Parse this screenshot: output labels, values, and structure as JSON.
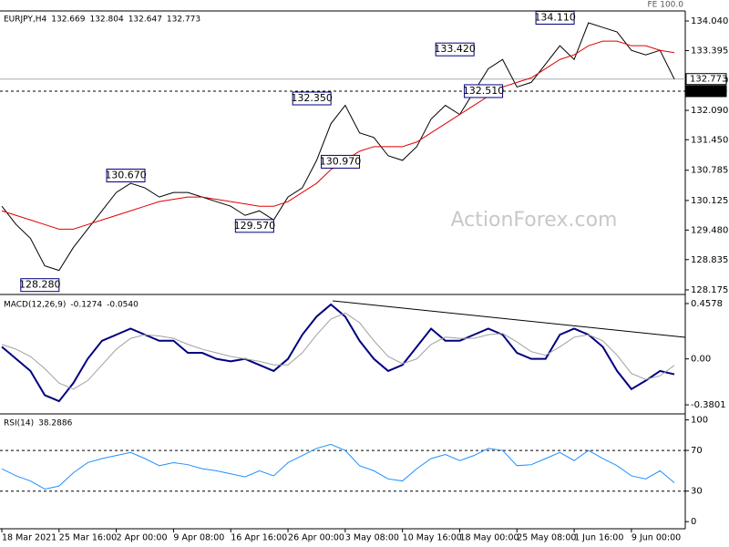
{
  "chart_data": [
    {
      "type": "line",
      "title": "EURJPY,H4",
      "ohlc": [
        132.669,
        132.804,
        132.647,
        132.773
      ],
      "indicator": "FE 100.0",
      "watermark": "ActionForex.com",
      "ylim": [
        128.095,
        134.259
      ],
      "yticks": [
        {
          "value": 134.04,
          "label": "134.040"
        },
        133.395,
        {
          "value": 132.75,
          "label": "132.750"
        },
        {
          "value": 132.09,
          "label": "132.090"
        },
        {
          "value": 131.45,
          "label": "131.450"
        },
        130.785,
        130.125,
        {
          "value": 129.48,
          "label": "129.480"
        },
        128.835,
        128.175
      ],
      "levels": [
        {
          "value": 132.773,
          "label": "132.773",
          "style": "solid"
        },
        {
          "value": 132.51,
          "label": "132.510",
          "style": "dashed"
        }
      ],
      "series": [
        {
          "name": "Close",
          "color": "#000000",
          "values": [
            130.0,
            129.6,
            129.3,
            128.7,
            128.6,
            129.1,
            129.5,
            129.9,
            130.3,
            130.5,
            130.4,
            130.2,
            130.3,
            130.3,
            130.2,
            130.1,
            130.0,
            129.8,
            129.9,
            129.7,
            130.2,
            130.4,
            131.0,
            131.8,
            132.2,
            131.6,
            131.5,
            131.1,
            131.0,
            131.3,
            131.9,
            132.2,
            132.0,
            132.5,
            133.0,
            133.2,
            132.6,
            132.7,
            133.1,
            133.5,
            133.2,
            134.0,
            133.9,
            133.8,
            133.4,
            133.3,
            133.4,
            132.773
          ]
        },
        {
          "name": "MA",
          "color": "#e00000",
          "values": [
            129.9,
            129.8,
            129.7,
            129.6,
            129.5,
            129.5,
            129.6,
            129.7,
            129.8,
            129.9,
            130.0,
            130.1,
            130.15,
            130.2,
            130.2,
            130.15,
            130.1,
            130.05,
            130.0,
            130.0,
            130.1,
            130.3,
            130.5,
            130.8,
            131.0,
            131.2,
            131.3,
            131.3,
            131.3,
            131.4,
            131.6,
            131.8,
            132.0,
            132.2,
            132.4,
            132.6,
            132.7,
            132.8,
            133.0,
            133.2,
            133.3,
            133.5,
            133.6,
            133.6,
            133.5,
            133.5,
            133.4,
            133.35
          ]
        }
      ],
      "annotations": [
        {
          "x": 4,
          "value": 128.28,
          "label": "128.280"
        },
        {
          "x": 10,
          "value": 130.67,
          "label": "130.670"
        },
        {
          "x": 19,
          "value": 129.57,
          "label": "129.570"
        },
        {
          "x": 23,
          "value": 132.35,
          "label": "132.350"
        },
        {
          "x": 25,
          "value": 130.97,
          "label": "130.970"
        },
        {
          "x": 33,
          "value": 133.42,
          "label": "133.420"
        },
        {
          "x": 35,
          "value": 132.51,
          "label": "132.510"
        },
        {
          "x": 40,
          "value": 134.11,
          "label": "134.110"
        }
      ]
    },
    {
      "type": "line",
      "title": "MACD(12,26,9)",
      "readout": [
        -0.1274,
        {
          "value": -0.054,
          "label": "-0.0540"
        }
      ],
      "ylim": [
        -0.44,
        0.5178
      ],
      "yticks": [
        0.4578,
        {
          "value": 0,
          "label": "0.00"
        },
        -0.3801
      ],
      "series": [
        {
          "name": "MACD",
          "color": "#000080",
          "values": [
            0.1,
            0.0,
            -0.1,
            -0.3,
            -0.35,
            -0.2,
            0.0,
            0.15,
            0.2,
            0.25,
            0.2,
            0.15,
            0.15,
            0.05,
            0.05,
            0.0,
            -0.02,
            0.0,
            -0.05,
            -0.1,
            0.0,
            0.2,
            0.35,
            0.45,
            0.35,
            0.15,
            0.0,
            -0.1,
            -0.05,
            0.1,
            0.25,
            0.15,
            0.15,
            0.2,
            0.25,
            0.2,
            0.05,
            0.0,
            0.0,
            0.2,
            0.25,
            0.2,
            0.1,
            -0.1,
            -0.25,
            -0.18,
            -0.1,
            -0.1274
          ]
        },
        {
          "name": "Signal",
          "color": "#a0a0a0",
          "values": [
            0.12,
            0.08,
            0.02,
            -0.08,
            -0.2,
            -0.25,
            -0.18,
            -0.05,
            0.08,
            0.17,
            0.2,
            0.19,
            0.17,
            0.12,
            0.08,
            0.05,
            0.02,
            0.0,
            -0.02,
            -0.05,
            -0.05,
            0.05,
            0.2,
            0.33,
            0.38,
            0.3,
            0.15,
            0.02,
            -0.04,
            0.0,
            0.12,
            0.18,
            0.17,
            0.17,
            0.2,
            0.21,
            0.14,
            0.06,
            0.03,
            0.1,
            0.18,
            0.2,
            0.15,
            0.03,
            -0.12,
            -0.17,
            -0.14,
            -0.054
          ]
        }
      ]
    },
    {
      "type": "line",
      "title": "RSI(14)",
      "readout": [
        38.2886
      ],
      "ylim": [
        -7,
        105
      ],
      "yticks": [
        100,
        70,
        30,
        0
      ],
      "levels": [
        70,
        30
      ],
      "categories": [
        "18 Mar 2021",
        null,
        null,
        null,
        "25 Mar 16:00",
        null,
        null,
        null,
        "2 Apr 00:00",
        null,
        null,
        null,
        "9 Apr 08:00",
        null,
        null,
        null,
        "16 Apr 16:00",
        null,
        null,
        null,
        "26 Apr 00:00",
        null,
        null,
        null,
        "3 May 08:00",
        null,
        null,
        null,
        "10 May 16:00",
        null,
        null,
        null,
        "18 May 00:00",
        null,
        null,
        null,
        "25 May 08:00",
        null,
        null,
        null,
        "1 Jun 16:00",
        null,
        null,
        null,
        "9 Jun 00:00",
        null,
        null,
        null
      ],
      "series": [
        {
          "name": "RSI",
          "color": "#1e90ff",
          "values": [
            52,
            45,
            40,
            32,
            35,
            48,
            58,
            62,
            65,
            68,
            62,
            55,
            58,
            56,
            52,
            50,
            47,
            44,
            50,
            45,
            58,
            65,
            72,
            76,
            70,
            55,
            50,
            42,
            40,
            52,
            62,
            66,
            60,
            65,
            72,
            70,
            55,
            56,
            62,
            68,
            60,
            70,
            62,
            55,
            45,
            42,
            50,
            38.2886
          ]
        }
      ]
    }
  ]
}
